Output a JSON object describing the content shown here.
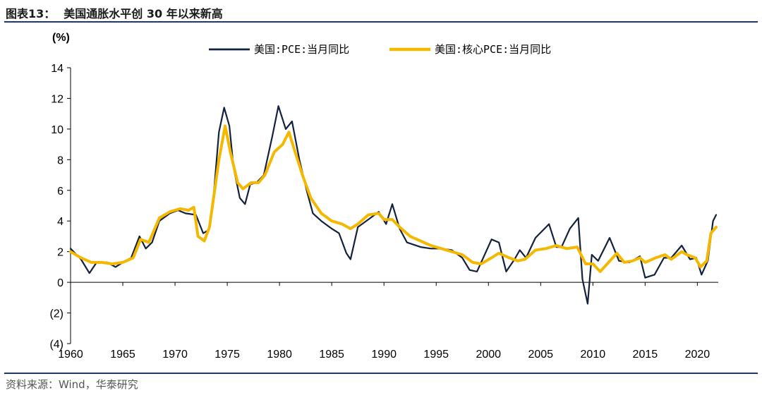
{
  "figure": {
    "label": "图表13：",
    "title": "美国通胀水平创 30 年以来新高"
  },
  "source": "资料来源：Wind，华泰研究",
  "chart_data": {
    "type": "line",
    "y_unit": "(%)",
    "xlim": [
      1960,
      2022
    ],
    "ylim": [
      -4,
      14
    ],
    "x_ticks": [
      1960,
      1965,
      1970,
      1975,
      1980,
      1985,
      1990,
      1995,
      2000,
      2005,
      2010,
      2015,
      2020
    ],
    "y_ticks": [
      14,
      12,
      10,
      8,
      6,
      4,
      2,
      0,
      -2,
      -4
    ],
    "y_tick_labels": [
      "14",
      "12",
      "10",
      "8",
      "6",
      "4",
      "2",
      "0",
      "(2)",
      "(4)"
    ],
    "legend_position": "top",
    "colors": {
      "headline": "#14213d",
      "core": "#f5b800"
    },
    "series": [
      {
        "name": "美国:PCE:当月同比",
        "data": [
          [
            1960,
            2.2
          ],
          [
            1961,
            1.5
          ],
          [
            1961.8,
            0.6
          ],
          [
            1962.5,
            1.3
          ],
          [
            1963.5,
            1.3
          ],
          [
            1964.3,
            1.0
          ],
          [
            1965,
            1.3
          ],
          [
            1965.8,
            1.6
          ],
          [
            1966.6,
            3.0
          ],
          [
            1967.2,
            2.2
          ],
          [
            1967.8,
            2.6
          ],
          [
            1968.5,
            4.0
          ],
          [
            1969.5,
            4.5
          ],
          [
            1970.3,
            4.7
          ],
          [
            1971,
            4.5
          ],
          [
            1972,
            4.4
          ],
          [
            1972.7,
            3.2
          ],
          [
            1973.2,
            3.4
          ],
          [
            1973.6,
            4.9
          ],
          [
            1974.2,
            9.8
          ],
          [
            1974.7,
            11.4
          ],
          [
            1975.2,
            10.2
          ],
          [
            1975.6,
            7.5
          ],
          [
            1976.2,
            5.5
          ],
          [
            1976.7,
            5.1
          ],
          [
            1977.2,
            6.4
          ],
          [
            1977.8,
            6.5
          ],
          [
            1978.5,
            7.0
          ],
          [
            1979.3,
            9.5
          ],
          [
            1979.9,
            11.5
          ],
          [
            1980.6,
            10.0
          ],
          [
            1981.2,
            10.5
          ],
          [
            1981.9,
            8.0
          ],
          [
            1982.6,
            6.0
          ],
          [
            1983.2,
            4.5
          ],
          [
            1984,
            4.0
          ],
          [
            1985,
            3.5
          ],
          [
            1985.7,
            3.2
          ],
          [
            1986.4,
            1.9
          ],
          [
            1986.8,
            1.5
          ],
          [
            1987.5,
            3.6
          ],
          [
            1988.5,
            4.1
          ],
          [
            1989.5,
            4.6
          ],
          [
            1990.2,
            3.8
          ],
          [
            1990.8,
            5.1
          ],
          [
            1991.5,
            3.5
          ],
          [
            1992.2,
            2.6
          ],
          [
            1993.5,
            2.3
          ],
          [
            1994.5,
            2.2
          ],
          [
            1995.5,
            2.2
          ],
          [
            1996.5,
            2.1
          ],
          [
            1997.5,
            1.6
          ],
          [
            1998.2,
            0.8
          ],
          [
            1998.9,
            0.7
          ],
          [
            1999.5,
            1.6
          ],
          [
            2000.3,
            2.8
          ],
          [
            2001,
            2.6
          ],
          [
            2001.7,
            0.7
          ],
          [
            2002.5,
            1.5
          ],
          [
            2003,
            2.1
          ],
          [
            2003.6,
            1.6
          ],
          [
            2004.5,
            2.9
          ],
          [
            2005.8,
            3.8
          ],
          [
            2006.5,
            2.3
          ],
          [
            2007,
            2.3
          ],
          [
            2007.8,
            3.5
          ],
          [
            2008.6,
            4.2
          ],
          [
            2009,
            0.2
          ],
          [
            2009.5,
            -1.4
          ],
          [
            2009.9,
            1.8
          ],
          [
            2010.5,
            1.4
          ],
          [
            2011.6,
            2.9
          ],
          [
            2012.5,
            1.4
          ],
          [
            2013.5,
            1.3
          ],
          [
            2014.5,
            1.7
          ],
          [
            2015,
            0.3
          ],
          [
            2015.9,
            0.5
          ],
          [
            2016.8,
            1.6
          ],
          [
            2017.5,
            1.6
          ],
          [
            2018.5,
            2.4
          ],
          [
            2019.3,
            1.5
          ],
          [
            2019.9,
            1.6
          ],
          [
            2020.4,
            0.5
          ],
          [
            2021,
            1.4
          ],
          [
            2021.5,
            4.0
          ],
          [
            2021.8,
            4.4
          ]
        ]
      },
      {
        "name": "美国:核心PCE:当月同比",
        "data": [
          [
            1960,
            2.0
          ],
          [
            1961,
            1.6
          ],
          [
            1962,
            1.3
          ],
          [
            1963,
            1.3
          ],
          [
            1964,
            1.2
          ],
          [
            1965,
            1.3
          ],
          [
            1966,
            1.6
          ],
          [
            1966.7,
            2.8
          ],
          [
            1967.5,
            2.6
          ],
          [
            1968.5,
            4.2
          ],
          [
            1969.5,
            4.6
          ],
          [
            1970.5,
            4.8
          ],
          [
            1971.3,
            4.7
          ],
          [
            1971.8,
            4.9
          ],
          [
            1972.2,
            3.0
          ],
          [
            1972.8,
            2.7
          ],
          [
            1973.3,
            3.6
          ],
          [
            1974.2,
            8.0
          ],
          [
            1974.8,
            10.2
          ],
          [
            1975.3,
            8.5
          ],
          [
            1976,
            6.5
          ],
          [
            1976.5,
            6.1
          ],
          [
            1977.3,
            6.5
          ],
          [
            1978,
            6.5
          ],
          [
            1978.6,
            7.0
          ],
          [
            1979.5,
            8.5
          ],
          [
            1980.3,
            9.0
          ],
          [
            1980.9,
            9.8
          ],
          [
            1981.5,
            8.5
          ],
          [
            1982.2,
            7.0
          ],
          [
            1983,
            5.5
          ],
          [
            1984,
            4.5
          ],
          [
            1985,
            4.0
          ],
          [
            1986,
            3.8
          ],
          [
            1986.8,
            3.5
          ],
          [
            1987.5,
            3.8
          ],
          [
            1988.5,
            4.4
          ],
          [
            1989.5,
            4.5
          ],
          [
            1990,
            4.1
          ],
          [
            1990.8,
            4.1
          ],
          [
            1991.5,
            3.6
          ],
          [
            1992.5,
            3.0
          ],
          [
            1993.5,
            2.7
          ],
          [
            1994.5,
            2.4
          ],
          [
            1995.5,
            2.2
          ],
          [
            1996.5,
            2.0
          ],
          [
            1997.5,
            1.8
          ],
          [
            1998.5,
            1.3
          ],
          [
            1999.3,
            1.2
          ],
          [
            2000.3,
            1.6
          ],
          [
            2001,
            1.9
          ],
          [
            2002,
            1.6
          ],
          [
            2002.8,
            1.4
          ],
          [
            2003.5,
            1.5
          ],
          [
            2004.5,
            2.1
          ],
          [
            2005.5,
            2.2
          ],
          [
            2006.5,
            2.4
          ],
          [
            2007.5,
            2.2
          ],
          [
            2008.5,
            2.3
          ],
          [
            2009.3,
            1.2
          ],
          [
            2010,
            1.2
          ],
          [
            2010.7,
            0.7
          ],
          [
            2011.5,
            1.3
          ],
          [
            2012.3,
            1.9
          ],
          [
            2013,
            1.3
          ],
          [
            2013.8,
            1.4
          ],
          [
            2014.5,
            1.6
          ],
          [
            2015,
            1.3
          ],
          [
            2016,
            1.6
          ],
          [
            2016.9,
            1.8
          ],
          [
            2017.5,
            1.5
          ],
          [
            2018.5,
            2.0
          ],
          [
            2019,
            1.8
          ],
          [
            2019.8,
            1.6
          ],
          [
            2020.3,
            1.0
          ],
          [
            2020.9,
            1.4
          ],
          [
            2021.3,
            3.2
          ],
          [
            2021.8,
            3.6
          ]
        ]
      }
    ]
  }
}
